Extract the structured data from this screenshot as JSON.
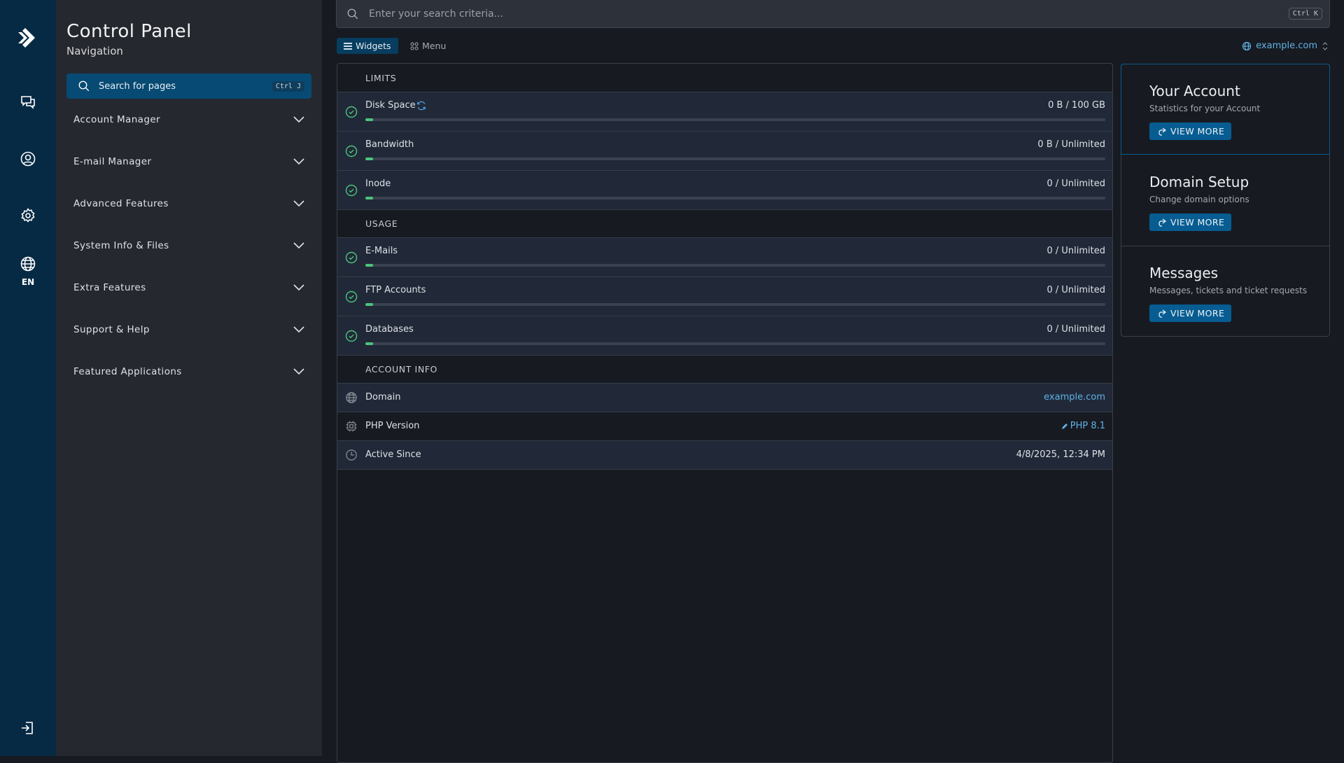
{
  "brand": {
    "title": "Control Panel",
    "subtitle": "Navigation",
    "accent": "#075d92",
    "success": "#4cc47a",
    "link": "#5fb2e6"
  },
  "rail": {
    "items": [
      "chat-icon",
      "user-icon",
      "settings-icon",
      "globe-icon"
    ],
    "language": "EN",
    "logout": "logout-icon"
  },
  "nav": {
    "search_placeholder": "Search for pages",
    "search_shortcut": "Ctrl J",
    "items": [
      {
        "label": "Account Manager"
      },
      {
        "label": "E-mail Manager"
      },
      {
        "label": "Advanced Features"
      },
      {
        "label": "System Info & Files"
      },
      {
        "label": "Extra Features"
      },
      {
        "label": "Support & Help"
      },
      {
        "label": "Featured Applications"
      }
    ]
  },
  "topbar": {
    "search_placeholder": "Enter your search criteria...",
    "shortcut": "Ctrl K"
  },
  "tabs": [
    {
      "label": "Widgets",
      "active": true
    },
    {
      "label": "Menu",
      "active": false
    }
  ],
  "domain_selector": "example.com",
  "sections": {
    "limits": {
      "title": "LIMITS",
      "rows": [
        {
          "label": "Disk Space",
          "value": "0 B / 100 GB",
          "progress": 0
        },
        {
          "label": "Bandwidth",
          "value": "0 B / Unlimited",
          "progress": 0
        },
        {
          "label": "Inode",
          "value": "0 / Unlimited",
          "progress": 0
        }
      ]
    },
    "usage": {
      "title": "USAGE",
      "rows": [
        {
          "label": "E-Mails",
          "value": "0 / Unlimited",
          "progress": 0
        },
        {
          "label": "FTP Accounts",
          "value": "0 / Unlimited",
          "progress": 0
        },
        {
          "label": "Databases",
          "value": "0 / Unlimited",
          "progress": 0
        }
      ]
    },
    "account_info": {
      "title": "ACCOUNT INFO",
      "rows": [
        {
          "label": "Domain",
          "value": "example.com"
        },
        {
          "label": "PHP Version",
          "value": "PHP 8.1"
        },
        {
          "label": "Active Since",
          "value": "4/8/2025, 12:34 PM"
        }
      ]
    }
  },
  "cards": [
    {
      "title": "Your Account",
      "subtitle": "Statistics for your Account",
      "button": "VIEW MORE"
    },
    {
      "title": "Domain Setup",
      "subtitle": "Change domain options",
      "button": "VIEW MORE"
    },
    {
      "title": "Messages",
      "subtitle": "Messages, tickets and ticket requests",
      "button": "VIEW MORE"
    }
  ]
}
